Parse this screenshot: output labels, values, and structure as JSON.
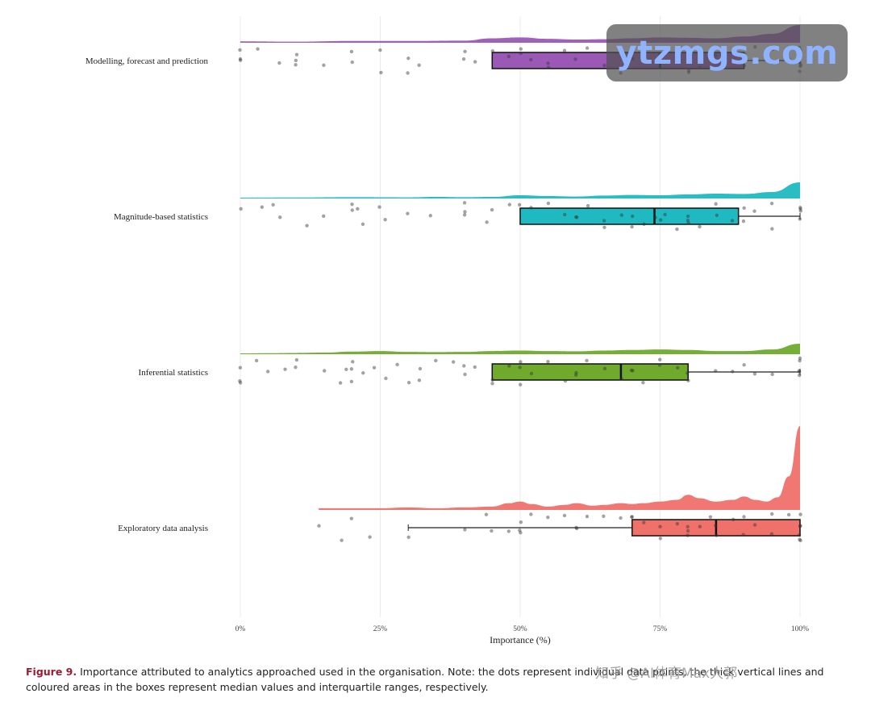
{
  "chart_data": {
    "type": "raincloud",
    "xlabel": "Importance (%)",
    "xlim": [
      0,
      100
    ],
    "xticks": [
      0,
      25,
      50,
      75,
      100
    ],
    "xtick_labels": [
      "0%",
      "25%",
      "50%",
      "75%",
      "100%"
    ],
    "grid": "vertical",
    "categories": [
      {
        "name": "Modelling, forecast and prediction",
        "color": "#9b59b6",
        "q1": 45,
        "median": 75,
        "q3": 90,
        "whisker_low": 45,
        "whisker_high": 100,
        "density_x": [
          0,
          10,
          20,
          30,
          40,
          45,
          50,
          55,
          60,
          65,
          70,
          75,
          80,
          85,
          90,
          95,
          100
        ],
        "density_y": [
          0.08,
          0.06,
          0.1,
          0.1,
          0.12,
          0.25,
          0.3,
          0.22,
          0.18,
          0.2,
          0.25,
          0.3,
          0.28,
          0.25,
          0.35,
          0.5,
          1.0
        ],
        "points": [
          0,
          0,
          0,
          3,
          7,
          10,
          10,
          10,
          15,
          20,
          20,
          25,
          25,
          30,
          30,
          32,
          40,
          40,
          42,
          45,
          48,
          50,
          50,
          52,
          55,
          55,
          58,
          60,
          62,
          65,
          68,
          70,
          70,
          72,
          75,
          75,
          78,
          80,
          80,
          82,
          85,
          85,
          88,
          90,
          90,
          92,
          95,
          95,
          98,
          100,
          100,
          100,
          100,
          100,
          100
        ]
      },
      {
        "name": "Magnitude-based statistics",
        "color": "#1fbac1",
        "q1": 50,
        "median": 74,
        "q3": 89,
        "whisker_low": 50,
        "whisker_high": 100,
        "density_x": [
          0,
          10,
          20,
          30,
          35,
          40,
          45,
          50,
          55,
          60,
          65,
          70,
          75,
          80,
          85,
          90,
          95,
          100
        ],
        "density_y": [
          0.05,
          0.06,
          0.08,
          0.07,
          0.1,
          0.08,
          0.1,
          0.2,
          0.15,
          0.12,
          0.18,
          0.22,
          0.2,
          0.25,
          0.3,
          0.28,
          0.4,
          1.0
        ],
        "points": [
          0,
          4,
          6,
          7,
          12,
          15,
          20,
          20,
          21,
          22,
          25,
          26,
          30,
          34,
          40,
          40,
          40,
          44,
          45,
          48,
          50,
          52,
          55,
          58,
          60,
          60,
          62,
          65,
          65,
          68,
          70,
          70,
          72,
          74,
          75,
          76,
          78,
          80,
          80,
          80,
          82,
          85,
          85,
          88,
          90,
          90,
          92,
          95,
          95,
          100,
          100,
          100,
          100
        ]
      },
      {
        "name": "Inferential statistics",
        "color": "#6faa2d",
        "q1": 45,
        "median": 68,
        "q3": 80,
        "whisker_low": 45,
        "whisker_high": 100,
        "density_x": [
          0,
          5,
          10,
          15,
          20,
          25,
          30,
          35,
          40,
          45,
          50,
          55,
          60,
          65,
          70,
          75,
          80,
          85,
          90,
          95,
          100
        ],
        "density_y": [
          0.08,
          0.1,
          0.12,
          0.15,
          0.25,
          0.3,
          0.22,
          0.2,
          0.22,
          0.3,
          0.35,
          0.3,
          0.28,
          0.35,
          0.4,
          0.45,
          0.4,
          0.3,
          0.3,
          0.45,
          1.0
        ],
        "points": [
          0,
          0,
          0,
          3,
          5,
          8,
          10,
          10,
          15,
          18,
          19,
          20,
          20,
          20,
          22,
          24,
          26,
          28,
          30,
          32,
          32,
          35,
          38,
          40,
          40,
          42,
          45,
          45,
          48,
          50,
          50,
          50,
          52,
          55,
          58,
          60,
          60,
          62,
          65,
          68,
          70,
          70,
          72,
          75,
          75,
          78,
          80,
          80,
          85,
          88,
          90,
          92,
          95,
          100,
          100,
          100,
          100,
          100
        ]
      },
      {
        "name": "Exploratory data analysis",
        "color": "#f0706a",
        "q1": 70,
        "median": 85,
        "q3": 100,
        "whisker_low": 30,
        "whisker_high": 100,
        "density_x": [
          14,
          20,
          25,
          30,
          35,
          40,
          45,
          48,
          50,
          52,
          55,
          58,
          60,
          63,
          65,
          68,
          70,
          72,
          75,
          78,
          80,
          82,
          85,
          88,
          90,
          92,
          94,
          96,
          98,
          100
        ],
        "density_y": [
          0.02,
          0.02,
          0.02,
          0.03,
          0.02,
          0.03,
          0.04,
          0.08,
          0.1,
          0.07,
          0.04,
          0.06,
          0.08,
          0.05,
          0.06,
          0.08,
          0.07,
          0.08,
          0.1,
          0.12,
          0.18,
          0.14,
          0.1,
          0.12,
          0.16,
          0.12,
          0.1,
          0.15,
          0.4,
          1.0
        ],
        "points": [
          14,
          18,
          20,
          23,
          30,
          40,
          44,
          45,
          48,
          50,
          50,
          50,
          52,
          55,
          58,
          60,
          60,
          62,
          65,
          68,
          70,
          70,
          72,
          75,
          75,
          78,
          80,
          80,
          80,
          82,
          84,
          85,
          85,
          88,
          90,
          90,
          92,
          95,
          95,
          98,
          100,
          100,
          100,
          100,
          100,
          100
        ]
      }
    ]
  },
  "caption": {
    "label": "Figure 9.",
    "text": " Importance attributed to analytics approached used in the organisation. Note: the dots represent individual data points, the thick vertical lines and coloured areas in the boxes represent median values and interquartile ranges, respectively."
  },
  "watermark": {
    "text": "ytzmgs.com",
    "secondary": "知乎 @AI体育Max大郭"
  }
}
